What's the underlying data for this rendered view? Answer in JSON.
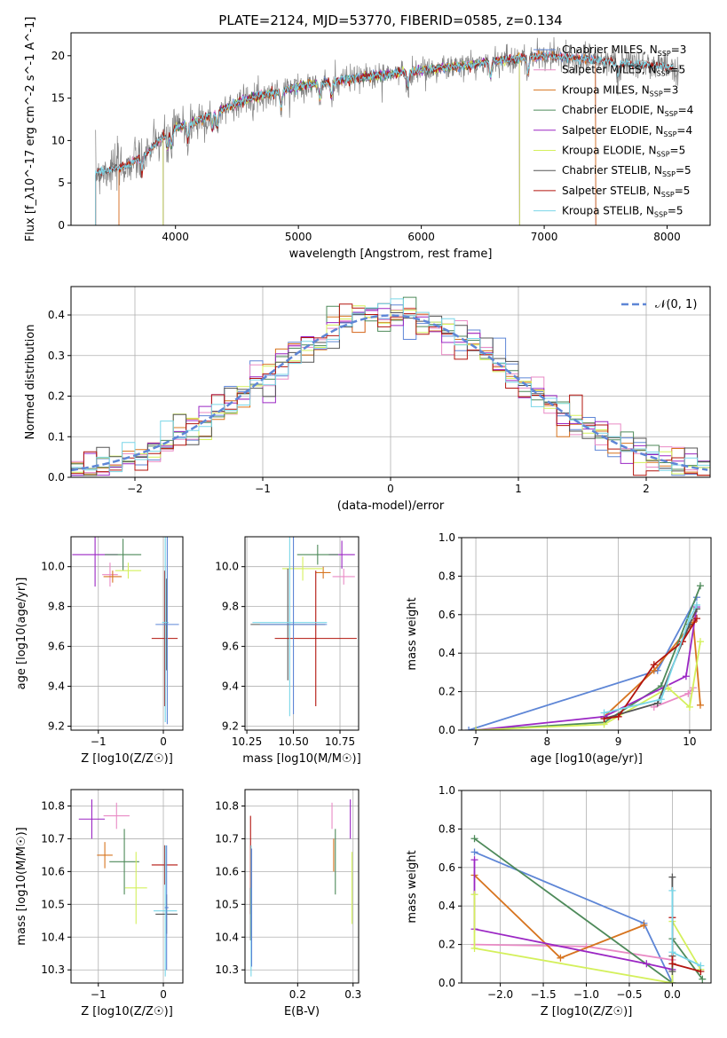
{
  "figure": {
    "title": "PLATE=2124, MJD=53770, FIBERID=0585, z=0.134"
  },
  "models": [
    {
      "name": "Chabrier MILES",
      "nssp": "3",
      "color": "#5e86d6"
    },
    {
      "name": "Salpeter MILES",
      "nssp": "5",
      "color": "#e98ac5"
    },
    {
      "name": "Kroupa MILES",
      "nssp": "3",
      "color": "#d7741f"
    },
    {
      "name": "Chabrier ELODIE",
      "nssp": "4",
      "color": "#4e8a5a"
    },
    {
      "name": "Salpeter ELODIE",
      "nssp": "4",
      "color": "#9b27c4"
    },
    {
      "name": "Kroupa ELODIE",
      "nssp": "5",
      "color": "#d4f05c"
    },
    {
      "name": "Chabrier STELIB",
      "nssp": "5",
      "color": "#555555"
    },
    {
      "name": "Salpeter STELIB",
      "nssp": "5",
      "color": "#b3140e"
    },
    {
      "name": "Kroupa STELIB",
      "nssp": "5",
      "color": "#79d6e8"
    }
  ],
  "chart_data": [
    {
      "id": "spectrum",
      "type": "line",
      "xlabel": "wavelength [Angstrom, rest frame]",
      "ylabel": "Flux [f_λ10^-17 erg cm^-2 s^-1 A^-1]",
      "xlim": [
        3150,
        8350
      ],
      "ylim": [
        0,
        22.7
      ],
      "xticks": [
        4000,
        5000,
        6000,
        7000,
        8000
      ],
      "yticks": [
        0,
        5,
        10,
        15,
        20
      ],
      "legend_position": "top-right",
      "data_series": {
        "name": "data",
        "color": "#808080"
      },
      "continuum_knots": {
        "x": [
          3350,
          3500,
          3600,
          3700,
          3800,
          3900,
          4000,
          4200,
          4400,
          4600,
          4800,
          5000,
          5200,
          5400,
          5600,
          5800,
          6000,
          6200,
          6400,
          6600,
          6800,
          7000,
          7200,
          7400,
          7600,
          7800,
          8000,
          8100
        ],
        "y": [
          6.2,
          6.7,
          7.0,
          7.8,
          9.0,
          10.5,
          11.5,
          12.4,
          13.8,
          15.0,
          15.6,
          16.4,
          16.8,
          17.2,
          17.6,
          17.9,
          18.3,
          18.6,
          18.9,
          19.4,
          19.7,
          20.0,
          19.8,
          19.5,
          19.2,
          18.9,
          18.7,
          18.6
        ]
      },
      "model_start_wavelength": {
        "Chabrier MILES": 3540,
        "Salpeter MILES": 3540,
        "Kroupa MILES": 3540,
        "Chabrier ELODIE": 3900,
        "Salpeter ELODIE": 3900,
        "Kroupa ELODIE": 3900,
        "Chabrier STELIB": 3350,
        "Salpeter STELIB": 3350,
        "Kroupa STELIB": 3350
      },
      "model_end_wavelength": {
        "Chabrier MILES": 7420,
        "Salpeter MILES": 7420,
        "Kroupa MILES": 7420,
        "Chabrier ELODIE": 6800,
        "Salpeter ELODIE": 6800,
        "Kroupa ELODIE": 6800,
        "Chabrier STELIB": 8050,
        "Salpeter STELIB": 8050,
        "Kroupa STELIB": 8050
      }
    },
    {
      "id": "residuals",
      "type": "line",
      "xlabel": "(data-model)/error",
      "ylabel": "Normed distribution",
      "xlim": [
        -2.5,
        2.5
      ],
      "ylim": [
        0,
        0.47
      ],
      "xticks": [
        -2,
        -1,
        0,
        1,
        2
      ],
      "yticks": [
        0.0,
        0.1,
        0.2,
        0.3,
        0.4
      ],
      "grid": true,
      "reference": {
        "label": "𝒩(0, 1)",
        "mean": 0,
        "sigma": 1,
        "color": "#5e86d6",
        "style": "dashed"
      },
      "legend_position": "top-right",
      "bin_width": 0.1
    },
    {
      "id": "age-vs-Z",
      "type": "scatter",
      "xlabel": "Z [log10(Z/Z☉)]",
      "ylabel": "age  [log10(age/yr)]",
      "xlim": [
        -1.42,
        0.3
      ],
      "ylim": [
        9.18,
        10.15
      ],
      "xticks": [
        -1,
        0
      ],
      "yticks": [
        9.2,
        9.4,
        9.6,
        9.8,
        10.0
      ],
      "grid": true,
      "points": [
        {
          "model": "Salpeter ELODIE",
          "x": -1.05,
          "xerr": 0.35,
          "y": 10.06,
          "yerr": 0.16
        },
        {
          "model": "Salpeter MILES",
          "x": -0.82,
          "xerr": 0.12,
          "y": 9.96,
          "yerr": 0.06
        },
        {
          "model": "Kroupa MILES",
          "x": -0.78,
          "xerr": 0.14,
          "y": 9.95,
          "yerr": 0.03
        },
        {
          "model": "Chabrier ELODIE",
          "x": -0.62,
          "xerr": 0.28,
          "y": 10.06,
          "yerr": 0.08
        },
        {
          "model": "Kroupa ELODIE",
          "x": -0.54,
          "xerr": 0.2,
          "y": 9.98,
          "yerr": 0.04
        },
        {
          "model": "Chabrier STELIB",
          "x": 0.05,
          "xerr": 0.02,
          "y": 9.71,
          "yerr": 0.23
        },
        {
          "model": "Salpeter STELIB",
          "x": 0.02,
          "xerr": 0.2,
          "y": 9.64,
          "yerr": 0.34
        },
        {
          "model": "Kroupa STELIB",
          "x": 0.03,
          "xerr": 0.05,
          "y": 9.72,
          "yerr": 0.5
        },
        {
          "model": "Chabrier MILES",
          "x": 0.06,
          "xerr": 0.18,
          "y": 9.71,
          "yerr": 0.5
        }
      ]
    },
    {
      "id": "age-vs-mass",
      "type": "scatter",
      "xlabel": "mass [log10(M/M☉)]",
      "ylabel": "",
      "xlim": [
        10.24,
        10.85
      ],
      "ylim": [
        9.18,
        10.15
      ],
      "xticks": [
        10.25,
        10.5,
        10.75
      ],
      "xtick_labels": [
        "10.25",
        "10.50",
        "10.75"
      ],
      "yticks": [
        9.2,
        9.4,
        9.6,
        9.8,
        10.0
      ],
      "grid": true,
      "points": [
        {
          "model": "Salpeter ELODIE",
          "x": 10.76,
          "xerr": 0.07,
          "y": 10.06,
          "yerr": 0.07
        },
        {
          "model": "Salpeter MILES",
          "x": 10.77,
          "xerr": 0.06,
          "y": 9.95,
          "yerr": 0.04
        },
        {
          "model": "Kroupa MILES",
          "x": 10.66,
          "xerr": 0.04,
          "y": 9.97,
          "yerr": 0.03
        },
        {
          "model": "Chabrier ELODIE",
          "x": 10.63,
          "xerr": 0.11,
          "y": 10.06,
          "yerr": 0.05
        },
        {
          "model": "Kroupa ELODIE",
          "x": 10.55,
          "xerr": 0.11,
          "y": 9.99,
          "yerr": 0.06
        },
        {
          "model": "Chabrier STELIB",
          "x": 10.47,
          "xerr": 0.2,
          "y": 9.71,
          "yerr": 0.28
        },
        {
          "model": "Salpeter STELIB",
          "x": 10.62,
          "xerr": 0.22,
          "y": 9.64,
          "yerr": 0.34
        },
        {
          "model": "Kroupa STELIB",
          "x": 10.48,
          "xerr": 0.2,
          "y": 9.72,
          "yerr": 0.47
        },
        {
          "model": "Chabrier MILES",
          "x": 10.5,
          "xerr": 0.18,
          "y": 9.71,
          "yerr": 0.45
        }
      ]
    },
    {
      "id": "weight-vs-age",
      "type": "line",
      "xlabel": "age  [log10(age/yr)]",
      "ylabel": "mass weight",
      "xlim": [
        6.8,
        10.3
      ],
      "ylim": [
        0,
        1
      ],
      "xticks": [
        7,
        8,
        9,
        10
      ],
      "yticks": [
        0.0,
        0.2,
        0.4,
        0.6,
        0.8,
        1.0
      ],
      "grid": true,
      "series": [
        {
          "model": "Chabrier MILES",
          "x": [
            6.9,
            9.55,
            10.1
          ],
          "y": [
            0.0,
            0.31,
            0.69
          ]
        },
        {
          "model": "Salpeter MILES",
          "x": [
            9.5,
            9.98,
            10.05
          ],
          "y": [
            0.12,
            0.19,
            0.22
          ]
        },
        {
          "model": "Kroupa MILES",
          "x": [
            8.8,
            9.5,
            10.05,
            10.15
          ],
          "y": [
            0.07,
            0.31,
            0.56,
            0.13
          ]
        },
        {
          "model": "Chabrier ELODIE",
          "x": [
            7.0,
            8.8,
            9.6,
            10.15
          ],
          "y": [
            0.0,
            0.04,
            0.23,
            0.75
          ]
        },
        {
          "model": "Salpeter ELODIE",
          "x": [
            7.0,
            8.8,
            9.95,
            10.1
          ],
          "y": [
            0.0,
            0.07,
            0.28,
            0.64
          ]
        },
        {
          "model": "Kroupa ELODIE",
          "x": [
            7.0,
            8.8,
            9.7,
            10.0,
            10.15
          ],
          "y": [
            0.0,
            0.03,
            0.22,
            0.12,
            0.46
          ]
        },
        {
          "model": "Chabrier STELIB",
          "x": [
            8.8,
            9.55,
            10.0,
            10.1
          ],
          "y": [
            0.06,
            0.14,
            0.55,
            0.63
          ]
        },
        {
          "model": "Salpeter STELIB",
          "x": [
            8.8,
            9.0,
            9.5,
            9.9,
            10.1
          ],
          "y": [
            0.06,
            0.07,
            0.34,
            0.46,
            0.58
          ]
        },
        {
          "model": "Kroupa STELIB",
          "x": [
            8.8,
            9.6,
            10.0,
            10.1
          ],
          "y": [
            0.09,
            0.16,
            0.58,
            0.65
          ]
        }
      ]
    },
    {
      "id": "mass-vs-Z",
      "type": "scatter",
      "xlabel": "Z [log10(Z/Z☉)]",
      "ylabel": "mass [log10(M/M☉)]",
      "xlim": [
        -1.42,
        0.3
      ],
      "ylim": [
        10.26,
        10.85
      ],
      "xticks": [
        -1,
        0
      ],
      "yticks": [
        10.3,
        10.4,
        10.5,
        10.6,
        10.7,
        10.8
      ],
      "grid": true,
      "points": [
        {
          "model": "Salpeter ELODIE",
          "x": -1.1,
          "xerr": 0.2,
          "y": 10.76,
          "yerr": 0.06
        },
        {
          "model": "Salpeter MILES",
          "x": -0.72,
          "xerr": 0.2,
          "y": 10.77,
          "yerr": 0.04
        },
        {
          "model": "Kroupa MILES",
          "x": -0.9,
          "xerr": 0.12,
          "y": 10.65,
          "yerr": 0.04
        },
        {
          "model": "Chabrier ELODIE",
          "x": -0.6,
          "xerr": 0.23,
          "y": 10.63,
          "yerr": 0.1
        },
        {
          "model": "Kroupa ELODIE",
          "x": -0.42,
          "xerr": 0.17,
          "y": 10.55,
          "yerr": 0.11
        },
        {
          "model": "Chabrier STELIB",
          "x": 0.05,
          "xerr": 0.17,
          "y": 10.47,
          "yerr": 0.06
        },
        {
          "model": "Salpeter STELIB",
          "x": 0.02,
          "xerr": 0.2,
          "y": 10.62,
          "yerr": 0.06
        },
        {
          "model": "Kroupa STELIB",
          "x": 0.03,
          "xerr": 0.18,
          "y": 10.48,
          "yerr": 0.2
        },
        {
          "model": "Chabrier MILES",
          "x": 0.05,
          "xerr": 0.03,
          "y": 10.49,
          "yerr": 0.19
        }
      ]
    },
    {
      "id": "mass-vs-ebv",
      "type": "scatter",
      "xlabel": "E(B-V)",
      "ylabel": "",
      "xlim": [
        0.105,
        0.31
      ],
      "ylim": [
        10.26,
        10.85
      ],
      "xticks": [
        0.2,
        0.3
      ],
      "xtick_labels": [
        "0.2",
        "0.3"
      ],
      "yticks": [
        10.3,
        10.4,
        10.5,
        10.6,
        10.7,
        10.8
      ],
      "grid": true,
      "points": [
        {
          "model": "Salpeter STELIB",
          "x": 0.115,
          "xerr": 0,
          "y": 10.62,
          "yerr": 0.15
        },
        {
          "model": "Chabrier STELIB",
          "x": 0.115,
          "xerr": 0,
          "y": 10.47,
          "yerr": 0.08
        },
        {
          "model": "Kroupa STELIB",
          "x": 0.116,
          "xerr": 0,
          "y": 10.48,
          "yerr": 0.2
        },
        {
          "model": "Chabrier MILES",
          "x": 0.117,
          "xerr": 0,
          "y": 10.49,
          "yerr": 0.18
        },
        {
          "model": "Salpeter MILES",
          "x": 0.262,
          "xerr": 0,
          "y": 10.77,
          "yerr": 0.04
        },
        {
          "model": "Kroupa MILES",
          "x": 0.265,
          "xerr": 0,
          "y": 10.65,
          "yerr": 0.05
        },
        {
          "model": "Chabrier ELODIE",
          "x": 0.268,
          "xerr": 0,
          "y": 10.63,
          "yerr": 0.1
        },
        {
          "model": "Salpeter ELODIE",
          "x": 0.295,
          "xerr": 0,
          "y": 10.76,
          "yerr": 0.06
        },
        {
          "model": "Kroupa ELODIE",
          "x": 0.298,
          "xerr": 0,
          "y": 10.55,
          "yerr": 0.11
        }
      ]
    },
    {
      "id": "weight-vs-Z",
      "type": "line",
      "xlabel": "Z [log10(Z/Z☉)]",
      "ylabel": "mass weight",
      "xlim": [
        -2.45,
        0.45
      ],
      "ylim": [
        0,
        1
      ],
      "xticks": [
        -2.0,
        -1.5,
        -1.0,
        -0.5,
        0.0
      ],
      "xtick_labels": [
        "−2.0",
        "−1.5",
        "−1.0",
        "−0.5",
        "0.0"
      ],
      "yticks": [
        0.0,
        0.2,
        0.4,
        0.6,
        0.8,
        1.0
      ],
      "grid": true,
      "series": [
        {
          "model": "Chabrier MILES",
          "x": [
            -2.3,
            -0.33,
            0.0
          ],
          "y": [
            0.68,
            0.31,
            0.0
          ]
        },
        {
          "model": "Salpeter MILES",
          "x": [
            -2.3,
            -1.0,
            0.0
          ],
          "y": [
            0.2,
            0.19,
            0.12
          ]
        },
        {
          "model": "Kroupa MILES",
          "x": [
            -2.3,
            -1.3,
            -0.33
          ],
          "y": [
            0.56,
            0.13,
            0.3
          ]
        },
        {
          "model": "Chabrier ELODIE",
          "x": [
            -2.3,
            0.0,
            0.0,
            0.35
          ],
          "y": [
            0.75,
            0.0,
            0.23,
            0.02
          ]
        },
        {
          "model": "Salpeter ELODIE",
          "x": [
            -2.3,
            -2.3,
            -0.3,
            0.0
          ],
          "y": [
            0.64,
            0.28,
            0.1,
            0.07
          ]
        },
        {
          "model": "Kroupa ELODIE",
          "x": [
            -2.3,
            -2.3,
            0.0,
            0.0,
            0.33
          ],
          "y": [
            0.46,
            0.18,
            0.0,
            0.32,
            0.07
          ]
        },
        {
          "model": "Chabrier STELIB",
          "x": [
            0.0,
            0.0,
            0.0
          ],
          "y": [
            0.55,
            0.14,
            0.06
          ]
        },
        {
          "model": "Salpeter STELIB",
          "x": [
            0.0,
            0.0,
            0.33
          ],
          "y": [
            0.34,
            0.1,
            0.06
          ]
        },
        {
          "model": "Kroupa STELIB",
          "x": [
            0.0,
            0.0,
            0.33
          ],
          "y": [
            0.48,
            0.16,
            0.09
          ]
        }
      ]
    }
  ]
}
